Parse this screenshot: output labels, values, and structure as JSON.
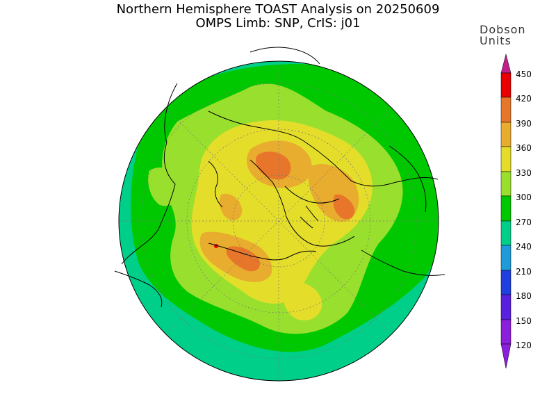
{
  "title": {
    "line1": "Northern Hemisphere TOAST Analysis on 20250609",
    "line2": "OMPS Limb: SNP, CrIS: j01"
  },
  "legend": {
    "title_line1": "Dobson",
    "title_line2": "Units",
    "levels": [
      "450",
      "420",
      "390",
      "360",
      "330",
      "300",
      "270",
      "240",
      "210",
      "180",
      "150",
      "120"
    ]
  },
  "colors": {
    "c120_150": "#8a1fdc",
    "c150_180": "#5a20e0",
    "c180_210": "#1f3fe0",
    "c210_240": "#1e9bd8",
    "c240_270": "#00cf8a",
    "c270_300": "#00c800",
    "c300_330": "#99e02e",
    "c330_360": "#e4de2a",
    "c360_390": "#e8ac2e",
    "c390_420": "#e8762a",
    "c420_450": "#e80000",
    "over_450": "#c0208a"
  }
}
